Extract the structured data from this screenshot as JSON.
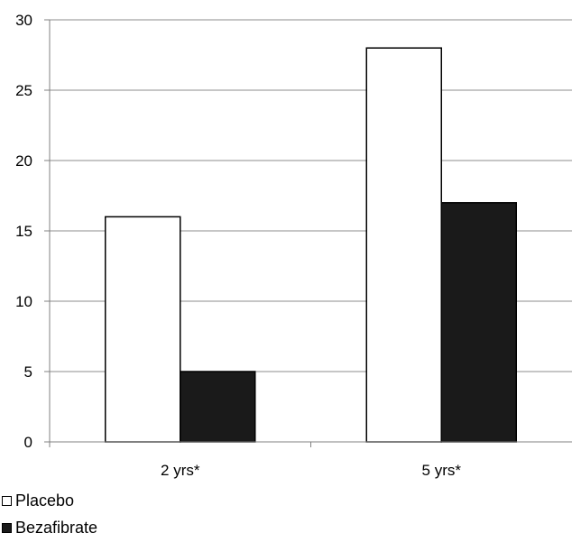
{
  "chart_data": {
    "type": "bar",
    "categories": [
      "2 yrs*",
      "5 yrs*"
    ],
    "series": [
      {
        "name": "Placebo",
        "values": [
          16,
          28
        ],
        "fill": "#ffffff",
        "stroke": "#000000"
      },
      {
        "name": "Bezafibrate",
        "values": [
          5,
          17
        ],
        "fill": "#1a1a1a",
        "stroke": "#000000"
      }
    ],
    "yticks": [
      "0",
      "5",
      "10",
      "15",
      "20",
      "25",
      "30"
    ],
    "ylim": [
      0,
      30
    ],
    "grid": true,
    "legend_position": "bottom-left",
    "title": "",
    "xlabel": "",
    "ylabel": ""
  }
}
